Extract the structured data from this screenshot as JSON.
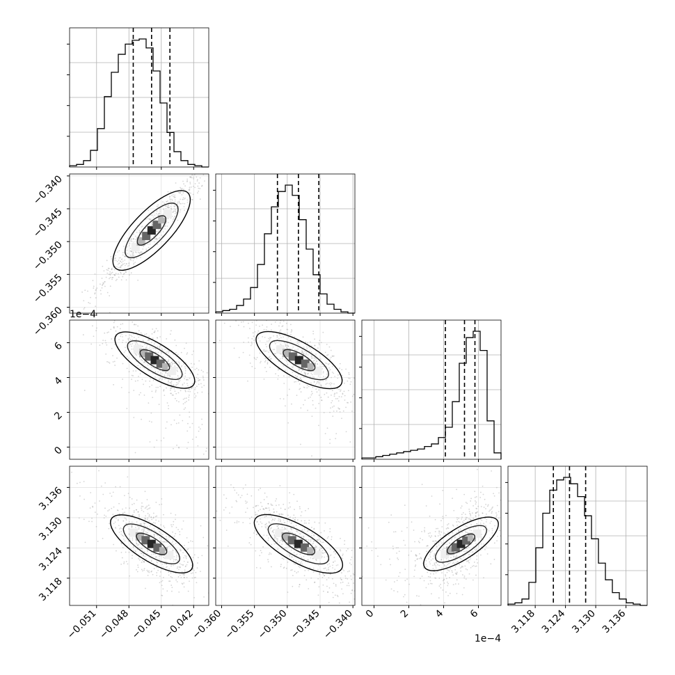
{
  "chart_data": {
    "type": "corner",
    "title": "",
    "colors": {
      "line": "#000000",
      "grid": "#b0b0b0",
      "scatter": "#a0a0a0",
      "hist_density": [
        "#ededed",
        "#cfcfcf",
        "#a8a8a8",
        "#7a7a7a",
        "#4a4a4a",
        "#1a1a1a",
        "#000000"
      ]
    },
    "parameters": [
      {
        "name": "p0",
        "range": [
          -0.0535,
          -0.0406
        ],
        "ticks": [
          -0.051,
          -0.048,
          -0.045,
          -0.042
        ],
        "tick_labels": [
          "−0.051",
          "−0.048",
          "−0.045",
          "−0.042"
        ],
        "offset_text": "",
        "quantiles": [
          -0.0476,
          -0.0459,
          -0.0442
        ],
        "hist": [
          0.01,
          0.02,
          0.05,
          0.13,
          0.3,
          0.55,
          0.74,
          0.88,
          0.96,
          0.99,
          1.0,
          0.93,
          0.75,
          0.5,
          0.27,
          0.12,
          0.05,
          0.02,
          0.01,
          0.0
        ]
      },
      {
        "name": "p1",
        "range": [
          -0.3609,
          -0.3397
        ],
        "ticks": [
          -0.36,
          -0.355,
          -0.35,
          -0.345,
          -0.34
        ],
        "tick_labels": [
          "−0.360",
          "−0.355",
          "−0.350",
          "−0.345",
          "−0.340"
        ],
        "offset_text": "",
        "quantiles": [
          -0.3515,
          -0.3483,
          -0.3452
        ],
        "hist": [
          0.01,
          0.02,
          0.03,
          0.06,
          0.11,
          0.2,
          0.38,
          0.62,
          0.83,
          0.95,
          1.0,
          0.92,
          0.73,
          0.5,
          0.3,
          0.15,
          0.07,
          0.03,
          0.01,
          0.0
        ]
      },
      {
        "name": "p2",
        "range": [
          -0.7,
          7.3
        ],
        "ticks": [
          0,
          2,
          4,
          6
        ],
        "tick_labels": [
          "0",
          "2",
          "4",
          "6"
        ],
        "offset_text": "1e−4",
        "quantiles": [
          4.1,
          5.2,
          5.8
        ],
        "hist": [
          0.01,
          0.01,
          0.02,
          0.03,
          0.04,
          0.05,
          0.06,
          0.07,
          0.08,
          0.1,
          0.12,
          0.17,
          0.25,
          0.45,
          0.75,
          0.95,
          1.0,
          0.85,
          0.3,
          0.05
        ]
      },
      {
        "name": "p3",
        "range": [
          3.1126,
          3.1402
        ],
        "ticks": [
          3.118,
          3.124,
          3.13,
          3.136
        ],
        "tick_labels": [
          "3.118",
          "3.124",
          "3.130",
          "3.136"
        ],
        "offset_text": "",
        "quantiles": [
          3.1216,
          3.1248,
          3.128
        ],
        "hist": [
          0.01,
          0.02,
          0.05,
          0.18,
          0.45,
          0.72,
          0.9,
          0.98,
          1.0,
          0.95,
          0.85,
          0.7,
          0.52,
          0.33,
          0.2,
          0.1,
          0.05,
          0.02,
          0.01,
          0.0
        ]
      }
    ],
    "left_ylabel_offsets": [
      "",
      "",
      "1e−4",
      ""
    ],
    "pairs": [
      {
        "row": 1,
        "col": 0,
        "mean": [
          -0.0459,
          -0.3483
        ],
        "sd": [
          0.0025,
          0.0045
        ],
        "corr": 0.95
      },
      {
        "row": 2,
        "col": 0,
        "mean": [
          -0.0456,
          5.0
        ],
        "sd": [
          0.0025,
          1.3
        ],
        "corr": -0.75
      },
      {
        "row": 2,
        "col": 1,
        "mean": [
          -0.3482,
          5.0
        ],
        "sd": [
          0.0045,
          1.3
        ],
        "corr": -0.75
      },
      {
        "row": 3,
        "col": 0,
        "mean": [
          -0.0459,
          3.1248
        ],
        "sd": [
          0.0025,
          0.0048
        ],
        "corr": -0.7
      },
      {
        "row": 3,
        "col": 1,
        "mean": [
          -0.3483,
          3.1248
        ],
        "sd": [
          0.0045,
          0.0048
        ],
        "corr": -0.7
      },
      {
        "row": 3,
        "col": 2,
        "mean": [
          5.0,
          3.1248
        ],
        "sd": [
          1.3,
          0.0048
        ],
        "corr": 0.6
      }
    ]
  }
}
